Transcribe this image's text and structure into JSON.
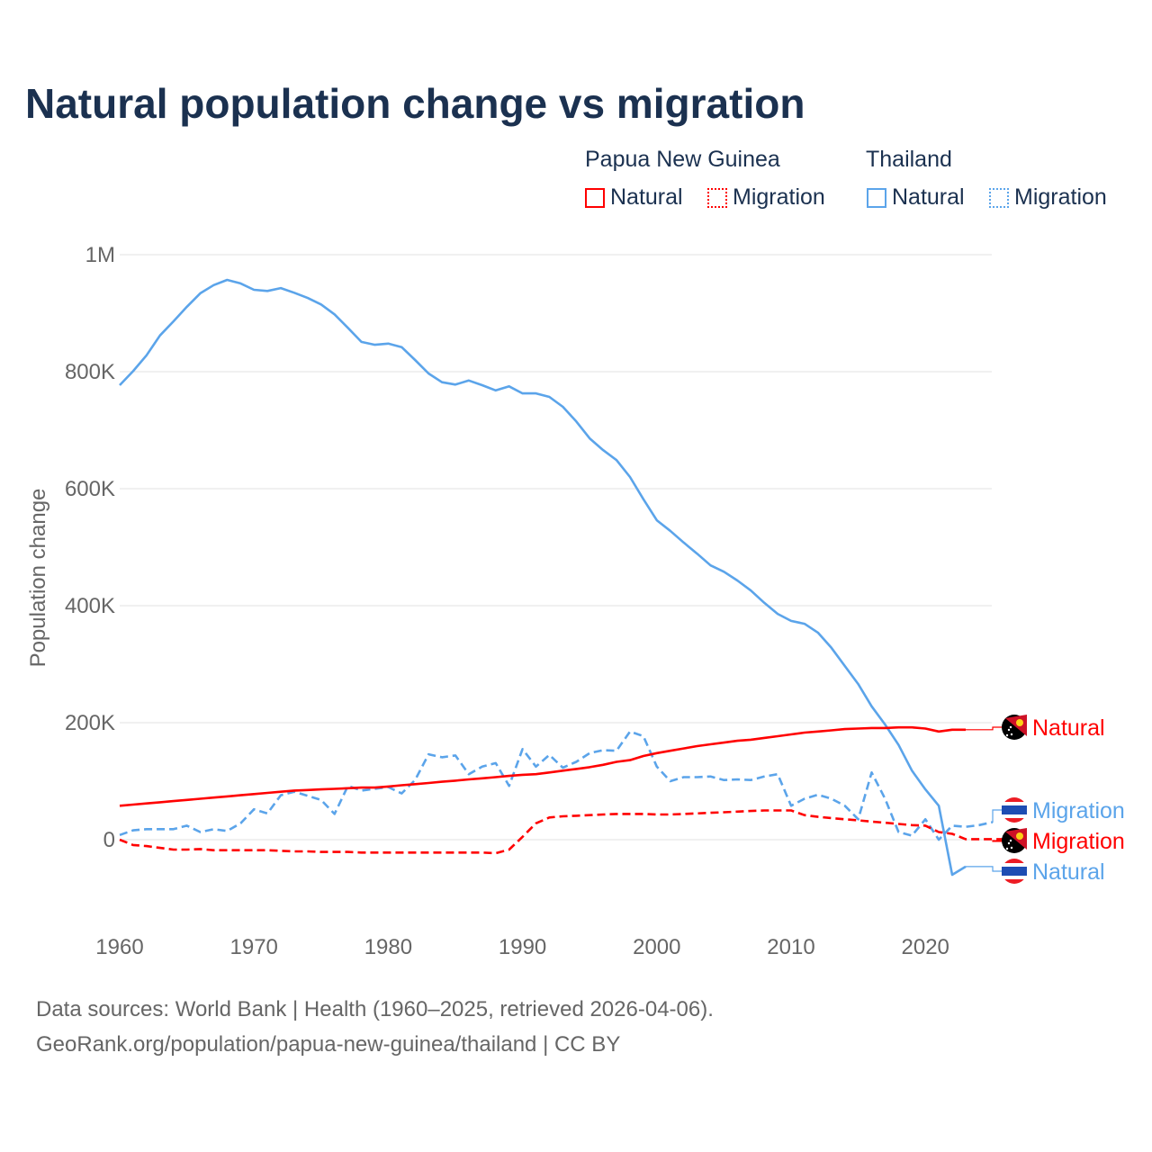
{
  "title": "Natural population change vs migration",
  "legend": {
    "groups": [
      {
        "name": "Papua New Guinea",
        "items": [
          "Natural",
          "Migration"
        ],
        "color": "#ff0000"
      },
      {
        "name": "Thailand",
        "items": [
          "Natural",
          "Migration"
        ],
        "color": "#5ba4ea"
      }
    ]
  },
  "footer": {
    "line1": "Data sources: World Bank | Health (1960–2025, retrieved 2026-04-06).",
    "line2": "GeoRank.org/population/papua-new-guinea/thailand | CC BY"
  },
  "chart_data": {
    "type": "line",
    "title": "Natural population change vs migration",
    "xlabel": "",
    "ylabel": "Population change",
    "xlim": [
      1960,
      2025
    ],
    "ylim": [
      -150000,
      1000000
    ],
    "x_ticks": [
      "1960",
      "1970",
      "1980",
      "1990",
      "2000",
      "2010",
      "2020"
    ],
    "y_ticks": [
      {
        "v": 0,
        "label": "0"
      },
      {
        "v": 200000,
        "label": "200K"
      },
      {
        "v": 400000,
        "label": "400K"
      },
      {
        "v": 600000,
        "label": "600K"
      },
      {
        "v": 800000,
        "label": "800K"
      },
      {
        "v": 1000000,
        "label": "1M"
      }
    ],
    "grid": true,
    "series": [
      {
        "name": "Papua New Guinea Natural",
        "end_label": "Natural",
        "color": "#ff0000",
        "dash": false,
        "start": 1960,
        "values_k": [
          58,
          60,
          62,
          64,
          66,
          68,
          70,
          72,
          74,
          76,
          78,
          80,
          82,
          84,
          85,
          86,
          87,
          88,
          89,
          89,
          91,
          93,
          95,
          97,
          99,
          101,
          103,
          105,
          107,
          109,
          111,
          112,
          115,
          118,
          121,
          124,
          128,
          133,
          136,
          143,
          148,
          152,
          156,
          160,
          163,
          166,
          169,
          171,
          174,
          177,
          180,
          183,
          185,
          187,
          189,
          190,
          191,
          191,
          192,
          192,
          190,
          185,
          188,
          188
        ]
      },
      {
        "name": "Papua New Guinea Migration",
        "end_label": "Migration",
        "color": "#ff0000",
        "dash": true,
        "start": 1960,
        "values_k": [
          0,
          -9,
          -11,
          -14,
          -17,
          -17,
          -16,
          -18,
          -18,
          -18,
          -18,
          -18,
          -19,
          -20,
          -20,
          -21,
          -21,
          -21,
          -22,
          -22,
          -22,
          -22,
          -22,
          -22,
          -22,
          -22,
          -22,
          -22,
          -23,
          -17,
          5,
          28,
          38,
          40,
          41,
          42,
          43,
          44,
          44,
          44,
          43,
          43,
          44,
          45,
          46,
          47,
          48,
          49,
          50,
          50,
          50,
          42,
          39,
          37,
          35,
          33,
          31,
          29,
          27,
          25,
          24,
          13,
          10,
          1,
          1,
          1,
          1,
          -3
        ]
      },
      {
        "name": "Thailand Natural",
        "end_label": "Natural",
        "color": "#5ba4ea",
        "dash": false,
        "start": 1960,
        "values_k": [
          777,
          801,
          828,
          862,
          886,
          911,
          934,
          948,
          957,
          951,
          940,
          938,
          943,
          935,
          926,
          915,
          898,
          875,
          851,
          846,
          848,
          842,
          820,
          797,
          782,
          778,
          785,
          777,
          768,
          775,
          763,
          763,
          757,
          740,
          715,
          686,
          666,
          649,
          620,
          582,
          546,
          528,
          508,
          489,
          469,
          458,
          443,
          426,
          405,
          386,
          374,
          369,
          354,
          328,
          297,
          266,
          228,
          197,
          162,
          118,
          86,
          58,
          -60,
          -46
        ]
      },
      {
        "name": "Thailand Migration",
        "end_label": "Migration",
        "color": "#5ba4ea",
        "dash": true,
        "start": 1960,
        "values_k": [
          8,
          16,
          18,
          18,
          18,
          24,
          13,
          18,
          15,
          28,
          52,
          45,
          76,
          82,
          75,
          68,
          44,
          92,
          84,
          87,
          90,
          79,
          102,
          146,
          141,
          144,
          112,
          125,
          131,
          92,
          155,
          125,
          145,
          123,
          133,
          148,
          153,
          152,
          185,
          177,
          125,
          100,
          107,
          107,
          108,
          102,
          103,
          102,
          108,
          112,
          58,
          70,
          77,
          70,
          58,
          35,
          115,
          70,
          13,
          7,
          35,
          0,
          24,
          22,
          25,
          30
        ]
      }
    ]
  }
}
